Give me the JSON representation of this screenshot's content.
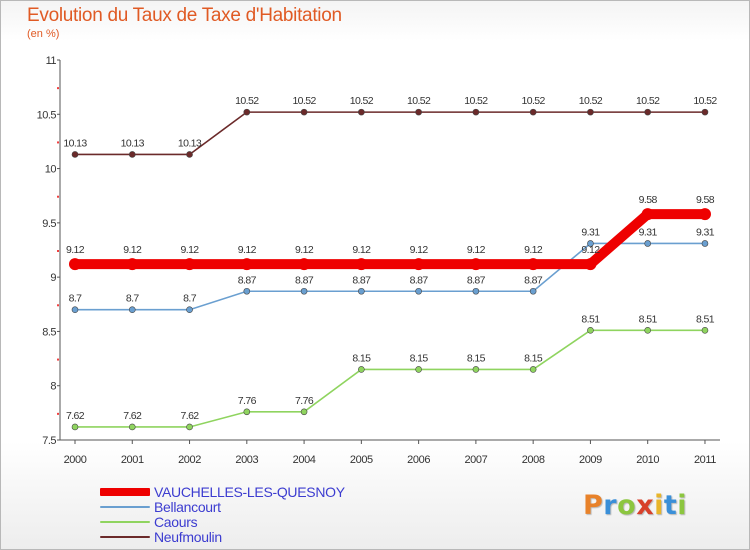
{
  "header": {
    "title": "Evolution du Taux de Taxe d'Habitation",
    "unit": "(en %)"
  },
  "logo": {
    "text": "Proxiti",
    "letter_colors": [
      "#e8822a",
      "#3a8fd8",
      "#8cc63f",
      "#d8402a",
      "#e8b52a",
      "#3a8fd8",
      "#8cc63f"
    ]
  },
  "chart_data": {
    "type": "line",
    "title": "Evolution du Taux de Taxe d'Habitation",
    "ylabel": "(en %)",
    "xlabel": "",
    "categories": [
      "2000",
      "2001",
      "2002",
      "2003",
      "2004",
      "2005",
      "2006",
      "2007",
      "2008",
      "2009",
      "2010",
      "2011"
    ],
    "ylim": [
      7.5,
      11
    ],
    "yticks": [
      7.5,
      8,
      8.5,
      9,
      9.5,
      10,
      10.5,
      11
    ],
    "ytick_labels": [
      "7.5",
      "8",
      "8.5",
      "9",
      "9.5",
      "10",
      "10.5",
      "11"
    ],
    "grid": false,
    "legend_position": "bottom-left",
    "series": [
      {
        "name": "Neufmoulin",
        "color": "#6b2a2a",
        "emphasis": false,
        "values": [
          10.13,
          10.13,
          10.13,
          10.52,
          10.52,
          10.52,
          10.52,
          10.52,
          10.52,
          10.52,
          10.52,
          10.52
        ],
        "labels": [
          "10.13",
          "10.13",
          "10.13",
          "10.52",
          "10.52",
          "10.52",
          "10.52",
          "10.52",
          "10.52",
          "10.52",
          "10.52",
          "10.52"
        ]
      },
      {
        "name": "Caours",
        "color": "#8fd45f",
        "emphasis": false,
        "values": [
          7.62,
          7.62,
          7.62,
          7.76,
          7.76,
          8.15,
          8.15,
          8.15,
          8.15,
          8.51,
          8.51,
          8.51
        ],
        "labels": [
          "7.62",
          "7.62",
          "7.62",
          "7.76",
          "7.76",
          "8.15",
          "8.15",
          "8.15",
          "8.15",
          "8.51",
          "8.51",
          "8.51"
        ]
      },
      {
        "name": "Bellancourt",
        "color": "#6a9fd0",
        "emphasis": false,
        "values": [
          8.7,
          8.7,
          8.7,
          8.87,
          8.87,
          8.87,
          8.87,
          8.87,
          8.87,
          9.31,
          9.31,
          9.31
        ],
        "labels": [
          "8.7",
          "8.7",
          "8.7",
          "8.87",
          "8.87",
          "8.87",
          "8.87",
          "8.87",
          "8.87",
          "9.31",
          "9.31",
          "9.31"
        ]
      },
      {
        "name": "VAUCHELLES-LES-QUESNOY",
        "color": "#ee0000",
        "emphasis": true,
        "values": [
          9.12,
          9.12,
          9.12,
          9.12,
          9.12,
          9.12,
          9.12,
          9.12,
          9.12,
          9.12,
          9.58,
          9.58
        ],
        "labels": [
          "9.12",
          "9.12",
          "9.12",
          "9.12",
          "9.12",
          "9.12",
          "9.12",
          "9.12",
          "9.12",
          "9.12",
          "9.58",
          "9.58"
        ]
      }
    ],
    "legend": [
      {
        "name": "VAUCHELLES-LES-QUESNOY",
        "color": "#ee0000",
        "emphasis": true
      },
      {
        "name": "Bellancourt",
        "color": "#6a9fd0",
        "emphasis": false
      },
      {
        "name": "Caours",
        "color": "#8fd45f",
        "emphasis": false
      },
      {
        "name": "Neufmoulin",
        "color": "#6b2a2a",
        "emphasis": false
      }
    ]
  }
}
